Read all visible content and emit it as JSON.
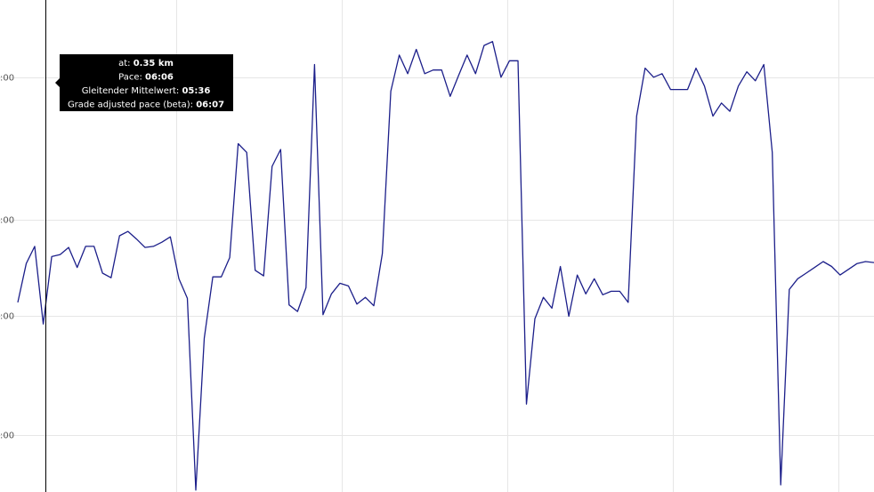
{
  "chart_data": {
    "type": "line",
    "y_scale": "reciprocal",
    "ylim": [
      3.61,
      9.53
    ],
    "yticks": [
      {
        "value": 4,
        "label": ":00"
      },
      {
        "value": 5,
        "label": ":00"
      },
      {
        "value": 6,
        "label": ":00"
      },
      {
        "value": 8,
        "label": ":00"
      }
    ],
    "grid": true,
    "color": "#1c1f8a",
    "values": [
      5.84,
      5.41,
      5.24,
      6.11,
      5.34,
      5.32,
      5.25,
      5.45,
      5.24,
      5.24,
      5.51,
      5.56,
      5.14,
      5.1,
      5.17,
      5.25,
      5.24,
      5.2,
      5.15,
      5.57,
      5.79,
      9.47,
      6.3,
      5.55,
      5.55,
      5.35,
      4.41,
      4.47,
      5.48,
      5.54,
      4.57,
      4.45,
      5.87,
      5.95,
      5.67,
      3.93,
      5.99,
      5.74,
      5.62,
      5.65,
      5.86,
      5.78,
      5.88,
      5.31,
      4.08,
      3.88,
      3.98,
      3.85,
      3.98,
      3.96,
      3.96,
      4.11,
      3.99,
      3.88,
      3.98,
      3.83,
      3.81,
      4.0,
      3.91,
      3.91,
      7.37,
      6.04,
      5.78,
      5.91,
      5.44,
      6.01,
      5.53,
      5.74,
      5.57,
      5.75,
      5.71,
      5.71,
      5.84,
      4.23,
      3.95,
      4.0,
      3.98,
      4.07,
      4.07,
      4.07,
      3.95,
      4.05,
      4.23,
      4.15,
      4.2,
      4.05,
      3.97,
      4.02,
      3.93,
      4.47,
      9.31,
      5.69,
      5.57,
      5.51,
      5.45,
      5.39,
      5.44,
      5.53,
      5.47,
      5.41,
      5.39,
      5.4
    ],
    "tooltip": [
      {
        "label": "at:",
        "value": "0.35 km"
      },
      {
        "label": "Pace:",
        "value": "06:06"
      },
      {
        "label": "Gleitender Mittelwert:",
        "value": "05:36"
      },
      {
        "label": "Grade adjusted pace (beta):",
        "value": "06:07"
      }
    ]
  }
}
